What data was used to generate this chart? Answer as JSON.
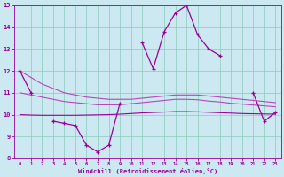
{
  "x": [
    0,
    1,
    2,
    3,
    4,
    5,
    6,
    7,
    8,
    9,
    10,
    11,
    12,
    13,
    14,
    15,
    16,
    17,
    18,
    19,
    20,
    21,
    22,
    23
  ],
  "line_main": [
    12,
    11,
    null,
    9.7,
    9.6,
    9.5,
    8.6,
    8.3,
    8.6,
    10.5,
    null,
    13.3,
    12.1,
    13.8,
    14.65,
    15.0,
    13.65,
    13.0,
    12.7,
    null,
    null,
    11.0,
    9.7,
    10.1
  ],
  "line_band1": [
    12.0,
    11.7,
    11.4,
    11.2,
    11.0,
    10.9,
    10.8,
    10.75,
    10.7,
    10.7,
    10.7,
    10.75,
    10.8,
    10.85,
    10.9,
    10.9,
    10.9,
    10.85,
    10.8,
    10.75,
    10.7,
    10.65,
    10.6,
    10.55
  ],
  "line_band2": [
    11.0,
    10.9,
    10.8,
    10.7,
    10.6,
    10.55,
    10.5,
    10.45,
    10.45,
    10.45,
    10.5,
    10.55,
    10.6,
    10.65,
    10.7,
    10.7,
    10.68,
    10.62,
    10.58,
    10.52,
    10.48,
    10.44,
    10.4,
    10.36
  ],
  "line_band3": [
    10.0,
    9.98,
    9.97,
    9.97,
    9.97,
    9.97,
    9.98,
    9.99,
    10.0,
    10.02,
    10.05,
    10.08,
    10.1,
    10.12,
    10.14,
    10.14,
    10.13,
    10.11,
    10.09,
    10.07,
    10.05,
    10.04,
    10.03,
    10.02
  ],
  "bg_color": "#cce8f0",
  "grid_color": "#88ccbb",
  "line_color": "#990099",
  "line_color2": "#bb44bb",
  "xlabel": "Windchill (Refroidissement éolien,°C)",
  "xlim": [
    -0.5,
    23.5
  ],
  "ylim": [
    8,
    15
  ],
  "yticks": [
    8,
    9,
    10,
    11,
    12,
    13,
    14,
    15
  ],
  "xticks": [
    0,
    1,
    2,
    3,
    4,
    5,
    6,
    7,
    8,
    9,
    10,
    11,
    12,
    13,
    14,
    15,
    16,
    17,
    18,
    19,
    20,
    21,
    22,
    23
  ],
  "figsize": [
    3.2,
    2.0
  ],
  "dpi": 100
}
